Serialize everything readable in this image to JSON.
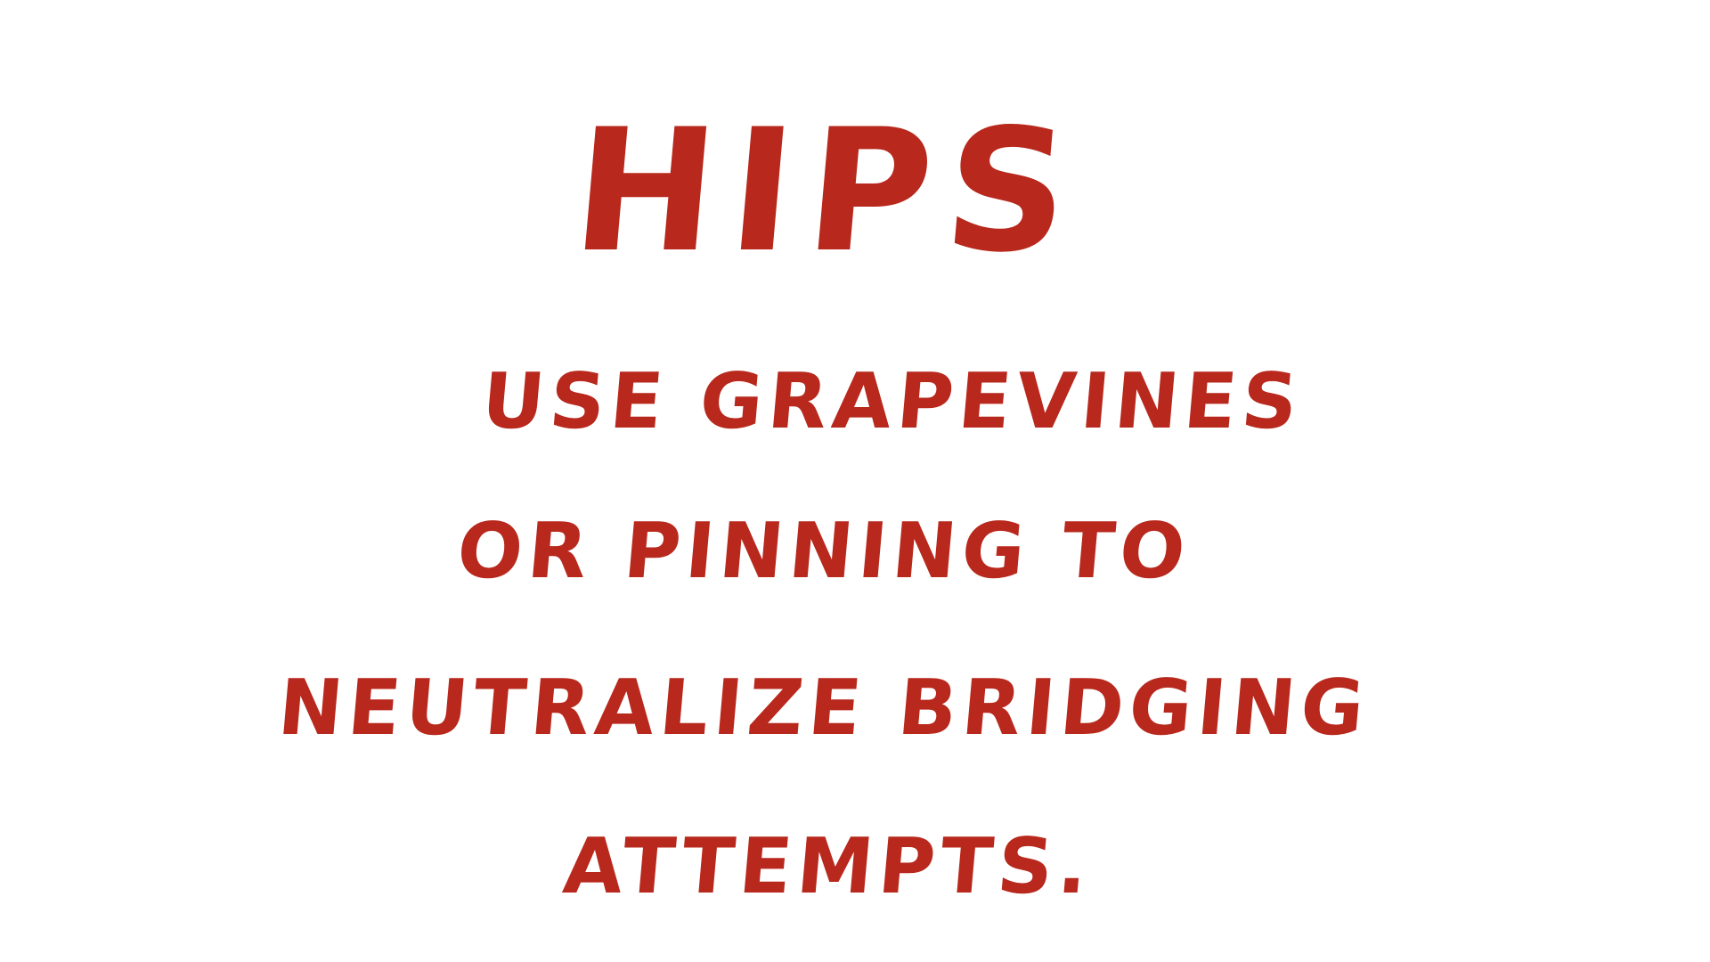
{
  "slide": {
    "title": "HIPS",
    "lines": [
      "USE GRAPEVINES",
      "OR PINNING TO",
      "NEUTRALIZE BRIDGING",
      "ATTEMPTS."
    ]
  },
  "colors": {
    "background": "#ffffff",
    "text": "#b8281d"
  }
}
